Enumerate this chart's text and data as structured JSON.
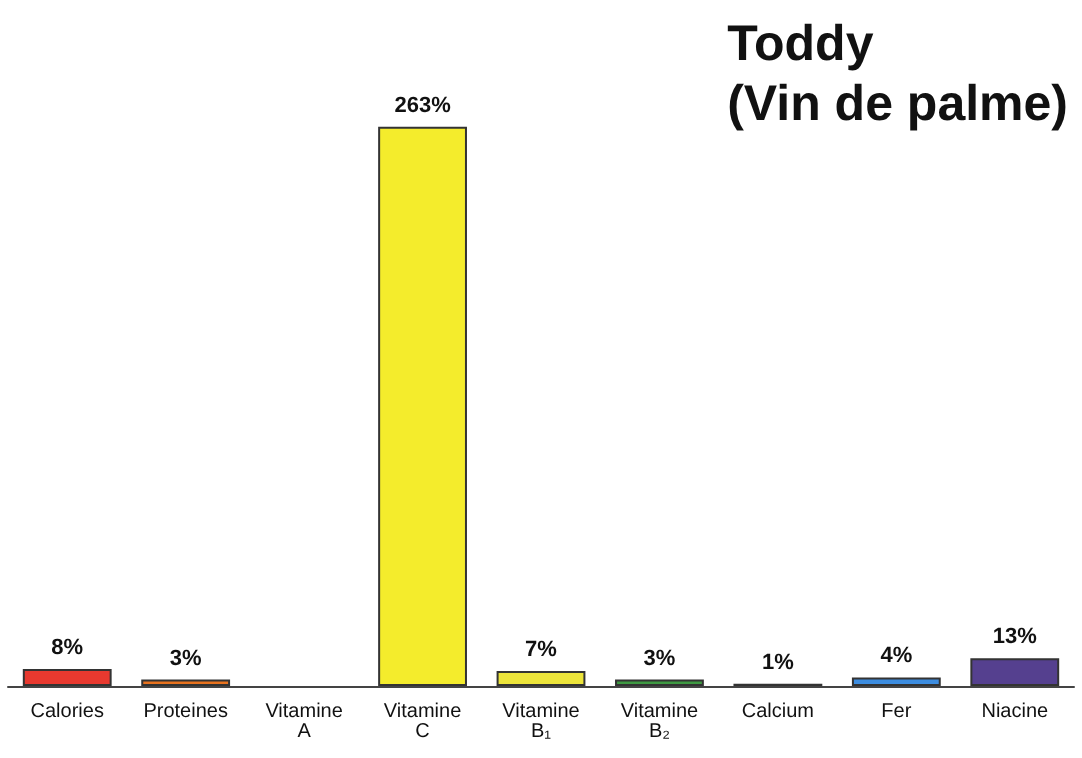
{
  "chart_data": {
    "type": "bar",
    "title": "Toddy\n(Vin de palme)",
    "categories": [
      "Calories",
      "Proteines",
      "Vitamine A",
      "Vitamine C",
      "Vitamine B₁",
      "Vitamine B₂",
      "Calcium",
      "Fer",
      "Niacine"
    ],
    "values": [
      8,
      3,
      0,
      263,
      7,
      3,
      1,
      4,
      13
    ],
    "value_labels": [
      "8%",
      "3%",
      null,
      "263%",
      "7%",
      "3%",
      "1%",
      "4%",
      "13%"
    ],
    "colors": [
      "#e8392f",
      "#e8731f",
      "#888888",
      "#f4ec2c",
      "#ece43a",
      "#3f9a43",
      "#3a9a8a",
      "#3d8de0",
      "#55408f"
    ],
    "grid": false
  }
}
